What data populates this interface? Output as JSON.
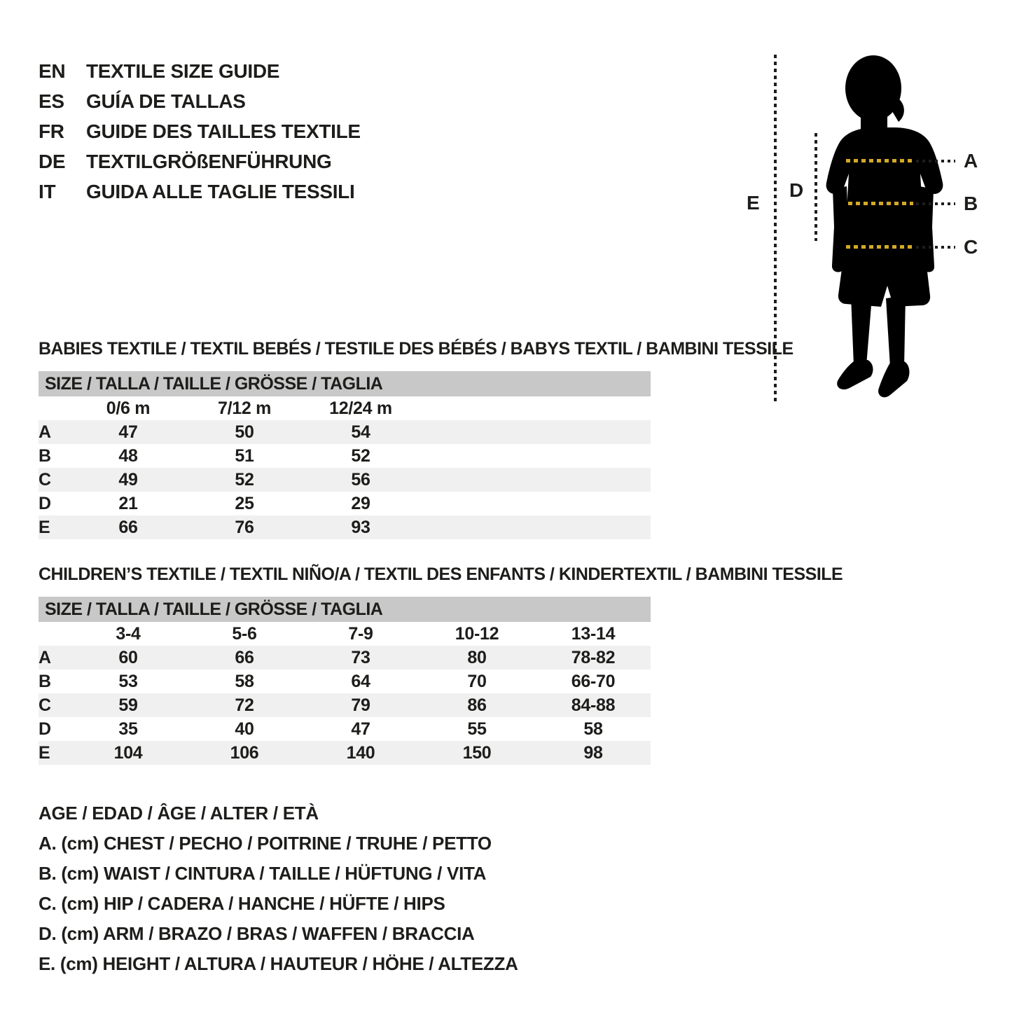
{
  "colors": {
    "text": "#1d1d1b",
    "header_bar": "#c8c8c8",
    "zebra_row": "#f0f0f0",
    "accent_gold": "#d4a929",
    "silhouette": "#000000"
  },
  "header": {
    "languages": [
      {
        "code": "EN",
        "title": "TEXTILE SIZE GUIDE"
      },
      {
        "code": "ES",
        "title": "GUÍA DE TALLAS"
      },
      {
        "code": "FR",
        "title": "GUIDE DES TAILLES TEXTILE"
      },
      {
        "code": "DE",
        "title": "TEXTILGRÖßENFÜHRUNG"
      },
      {
        "code": "IT",
        "title": "GUIDA ALLE TAGLIE TESSILI"
      }
    ]
  },
  "figure": {
    "labels": {
      "A": "A",
      "B": "B",
      "C": "C",
      "D": "D",
      "E": "E"
    }
  },
  "babies": {
    "title": "BABIES TEXTILE / TEXTIL BEBÉS / TESTILE DES BÉBÉS / BABYS TEXTIL / BAMBINI TESSILE",
    "size_header": "SIZE / TALLA / TAILLE / GRÖSSE / TAGLIA",
    "columns": [
      "0/6 m",
      "7/12 m",
      "12/24 m"
    ],
    "rows": [
      {
        "label": "A",
        "values": [
          "47",
          "50",
          "54"
        ]
      },
      {
        "label": "B",
        "values": [
          "48",
          "51",
          "52"
        ]
      },
      {
        "label": "C",
        "values": [
          "49",
          "52",
          "56"
        ]
      },
      {
        "label": "D",
        "values": [
          "21",
          "25",
          "29"
        ]
      },
      {
        "label": "E",
        "values": [
          "66",
          "76",
          "93"
        ]
      }
    ]
  },
  "children": {
    "title": "CHILDREN’S TEXTILE / TEXTIL NIÑO/A / TEXTIL DES ENFANTS / KINDERTEXTIL / BAMBINI TESSILE",
    "size_header": "SIZE / TALLA / TAILLE / GRÖSSE / TAGLIA",
    "columns": [
      "3-4",
      "5-6",
      "7-9",
      "10-12",
      "13-14"
    ],
    "rows": [
      {
        "label": "A",
        "values": [
          "60",
          "66",
          "73",
          "80",
          "78-82"
        ]
      },
      {
        "label": "B",
        "values": [
          "53",
          "58",
          "64",
          "70",
          "66-70"
        ]
      },
      {
        "label": "C",
        "values": [
          "59",
          "72",
          "79",
          "86",
          "84-88"
        ]
      },
      {
        "label": "D",
        "values": [
          "35",
          "40",
          "47",
          "55",
          "58"
        ]
      },
      {
        "label": "E",
        "values": [
          "104",
          "106",
          "140",
          "150",
          "98"
        ]
      }
    ]
  },
  "legend": {
    "lines": [
      "AGE / EDAD / ÂGE / ALTER / ETÀ",
      "A. (cm) CHEST / PECHO / POITRINE / TRUHE / PETTO",
      "B. (cm) WAIST / CINTURA / TAILLE / HÜFTUNG / VITA",
      "C. (cm) HIP / CADERA / HANCHE / HÜFTE / HIPS",
      "D. (cm) ARM / BRAZO / BRAS / WAFFEN / BRACCIA",
      "E. (cm) HEIGHT / ALTURA / HAUTEUR / HÖHE / ALTEZZA"
    ]
  }
}
